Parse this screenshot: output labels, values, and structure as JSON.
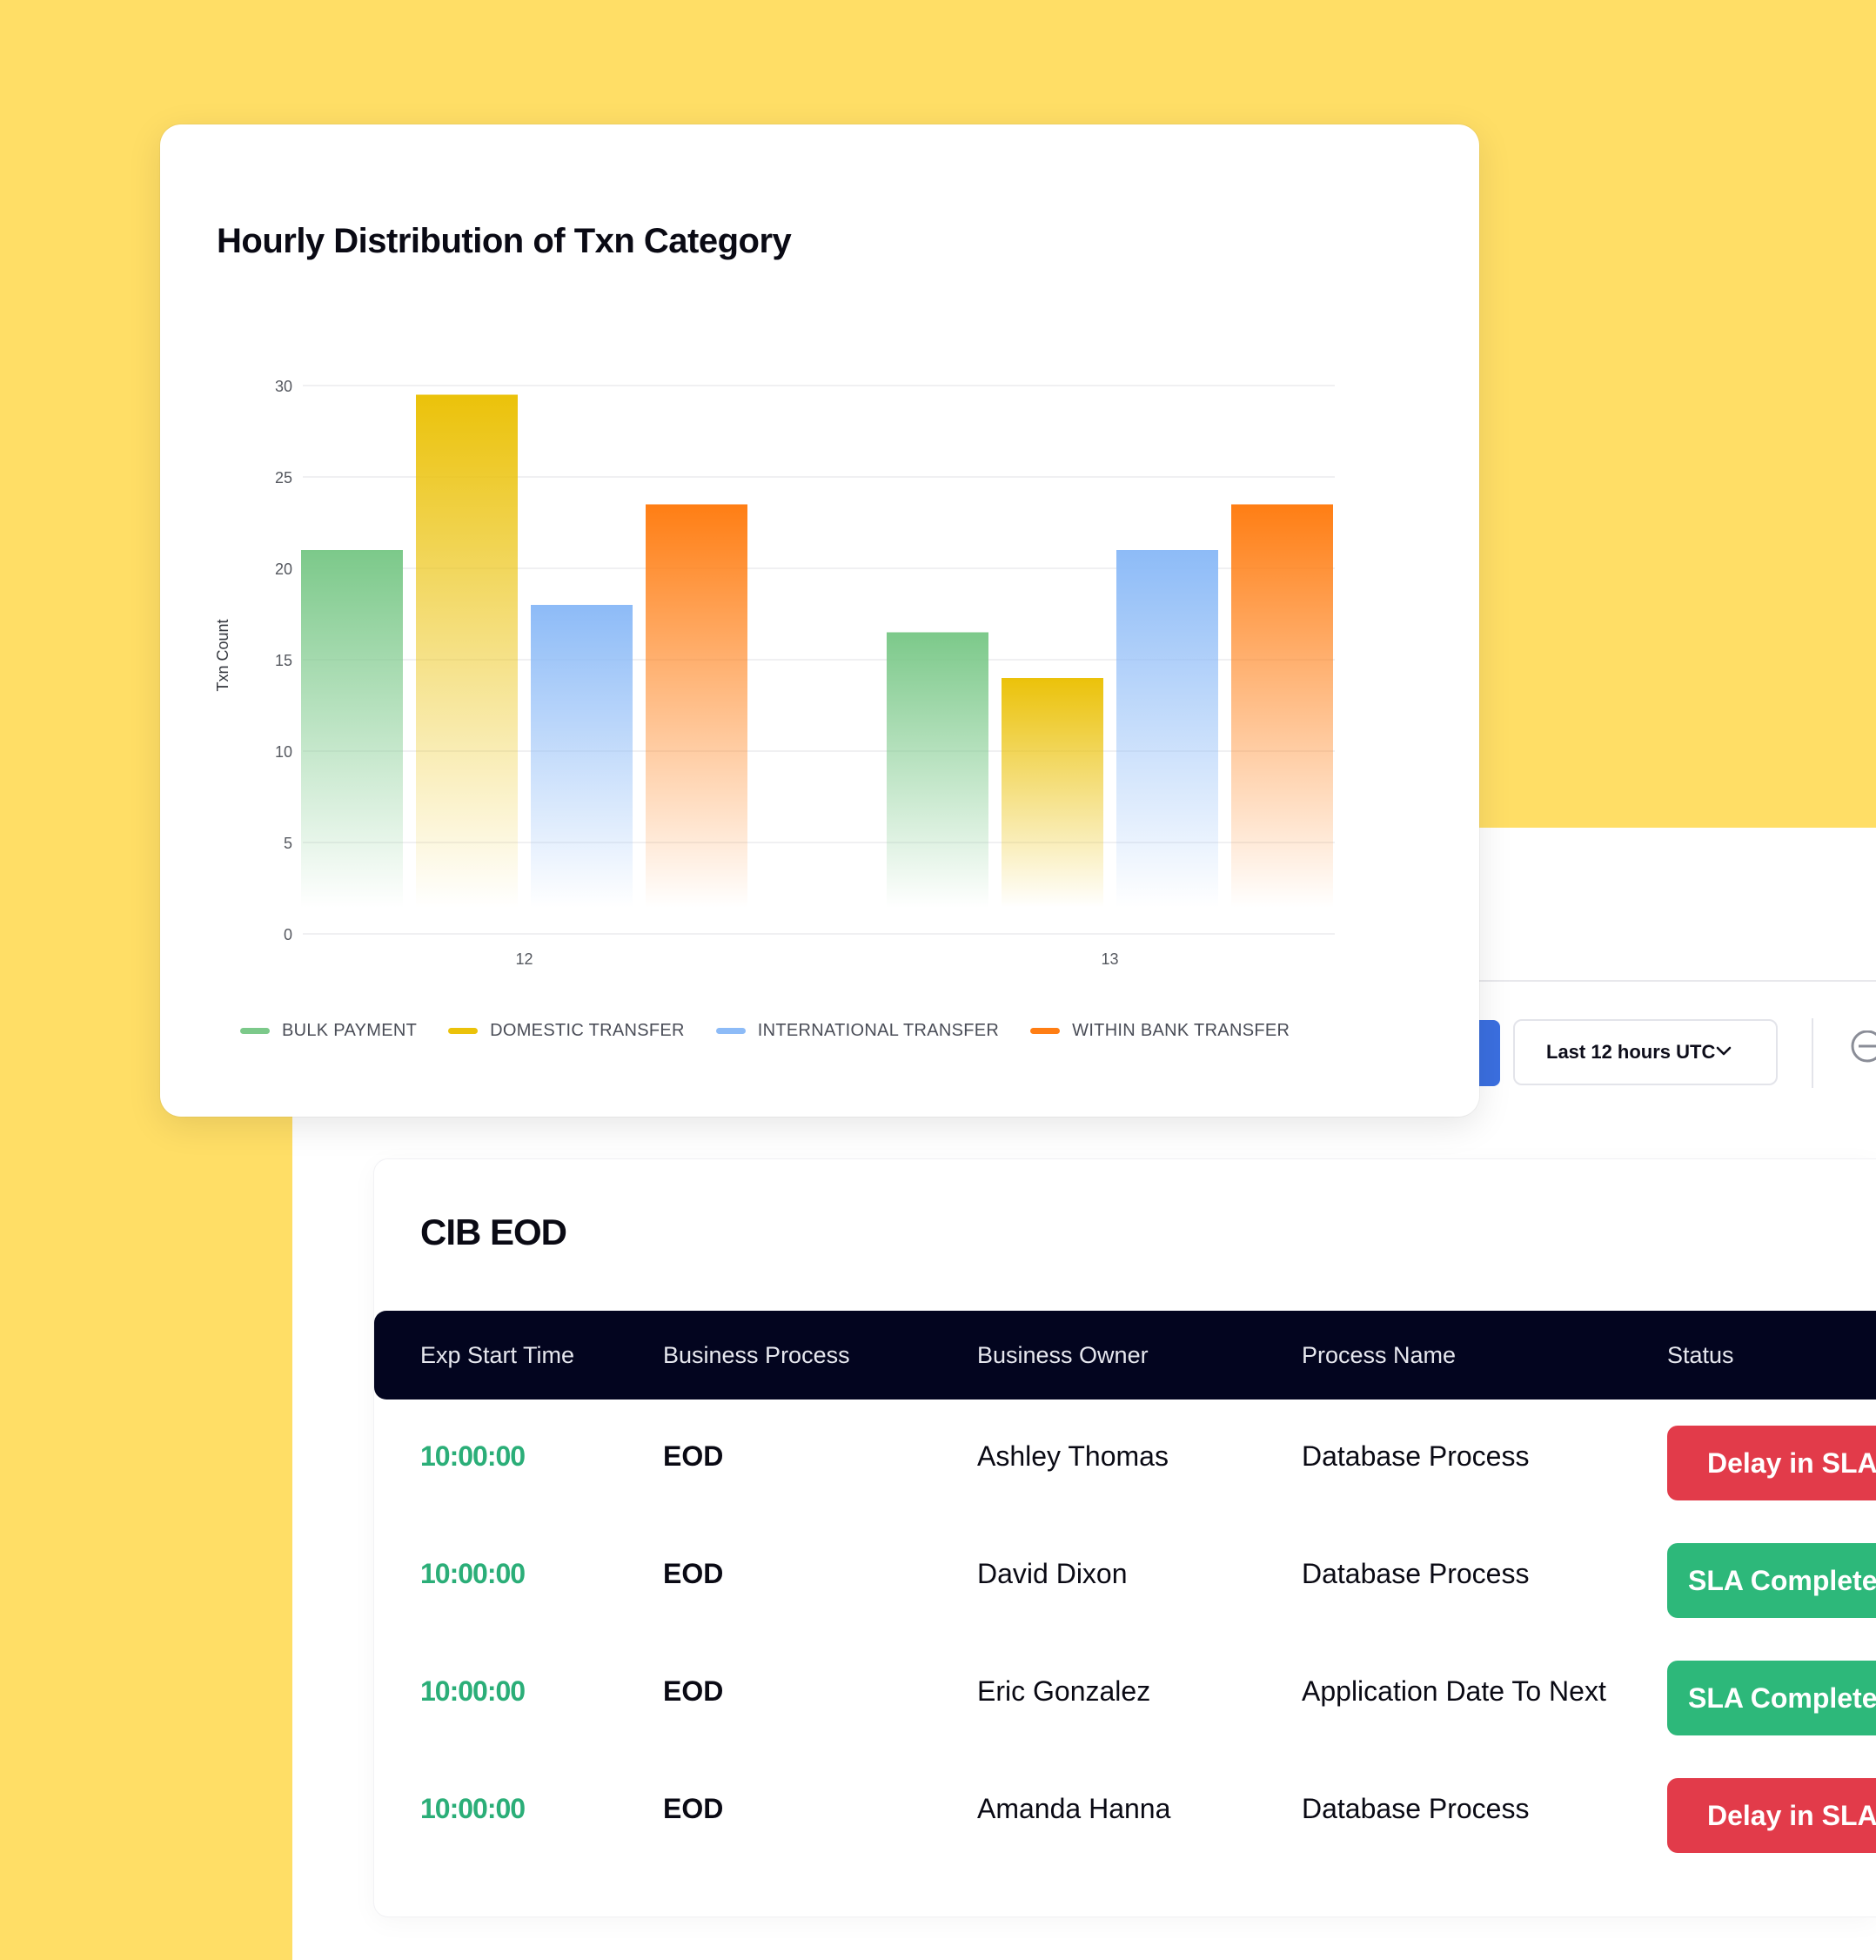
{
  "chart_card": {
    "title": "Hourly Distribution of Txn Category"
  },
  "chart_data": {
    "type": "bar",
    "title": "Hourly Distribution of Txn Category",
    "xlabel": "",
    "ylabel": "Txn Count",
    "categories": [
      "12",
      "13"
    ],
    "y_ticks": [
      "0",
      "5",
      "10",
      "15",
      "20",
      "25",
      "30"
    ],
    "ylim": [
      0,
      30
    ],
    "grid": true,
    "legend_position": "bottom",
    "series": [
      {
        "name": "BULK PAYMENT",
        "color": "#7CC98A",
        "values": [
          21,
          16.5
        ]
      },
      {
        "name": "DOMESTIC TRANSFER",
        "color": "#EBC20A",
        "values": [
          29.5,
          14
        ]
      },
      {
        "name": "INTERNATIONAL TRANSFER",
        "color": "#8DBBF7",
        "values": [
          18,
          21
        ]
      },
      {
        "name": "WITHIN BANK TRANSFER",
        "color": "#FF7E14",
        "values": [
          23.5,
          23.5
        ]
      }
    ]
  },
  "toolbar": {
    "time_range": "Last 12 hours UTC"
  },
  "table": {
    "title": "CIB EOD",
    "headers": [
      "Exp Start Time",
      "Business Process",
      "Business Owner",
      "Process Name",
      "Status"
    ],
    "rows": [
      {
        "time": "10:00:00",
        "process": "EOD",
        "owner": "Ashley Thomas",
        "name": "Database Process",
        "status": "Delay in SLA",
        "status_type": "delay"
      },
      {
        "time": "10:00:00",
        "process": "EOD",
        "owner": "David Dixon",
        "name": "Database Process",
        "status": "SLA Complete",
        "status_type": "ok"
      },
      {
        "time": "10:00:00",
        "process": "EOD",
        "owner": "Eric Gonzalez",
        "name": "Application Date To Next",
        "status": "SLA Complete",
        "status_type": "ok"
      },
      {
        "time": "10:00:00",
        "process": "EOD",
        "owner": "Amanda Hanna",
        "name": "Database Process",
        "status": "Delay in SLA",
        "status_type": "delay"
      }
    ]
  },
  "colors": {
    "background": "#FFDE66",
    "header_bg": "#03051F",
    "time_text": "#2BAE78",
    "delay_badge": "#E23B4A",
    "ok_badge": "#2DB87A",
    "primary_button": "#3B6FE0"
  }
}
